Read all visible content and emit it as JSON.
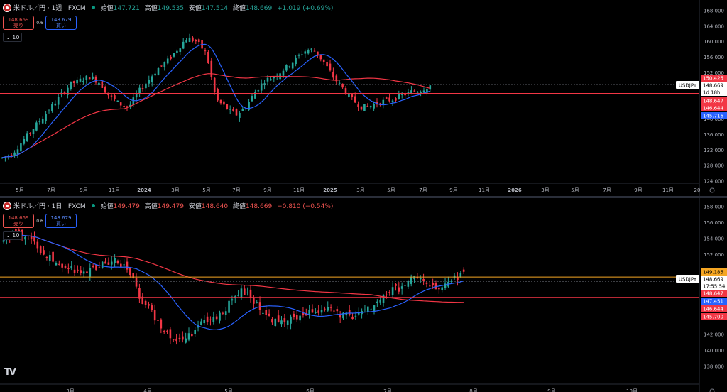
{
  "top": {
    "symbol": "米ドル／円 · 1週 · FXCM",
    "ohlc": {
      "open_label": "始値",
      "open": "147.721",
      "high_label": "高値",
      "high": "149.535",
      "low_label": "安値",
      "low": "147.514",
      "close_label": "終値",
      "close": "148.669",
      "change": "+1.019 (+0.69%)"
    },
    "sell_price": "148.669",
    "sell_label": "売り",
    "buy_price": "148.679",
    "buy_label": "買い",
    "spread": "0.6",
    "ma_toggle": "10",
    "price_ticks": [
      "168.000",
      "164.000",
      "160.000",
      "156.000",
      "152.000",
      "148.000",
      "144.000",
      "140.000",
      "136.000",
      "132.000",
      "128.000",
      "124.000"
    ],
    "time_ticks": [
      "5月",
      "7月",
      "9月",
      "11月",
      "2024",
      "3月",
      "5月",
      "7月",
      "9月",
      "11月",
      "2025",
      "3月",
      "5月",
      "7月",
      "9月",
      "11月",
      "2026",
      "3月",
      "5月",
      "7月",
      "9月",
      "11月",
      "20"
    ],
    "symbol_tag": "USDJPY",
    "badges": [
      {
        "text": "150.425",
        "bg": "#f23645",
        "fg": "#ffffff"
      },
      {
        "text": "148.669",
        "bg": "#ffffff",
        "fg": "#000000"
      },
      {
        "text": "1d 18h",
        "bg": "#ffffff",
        "fg": "#000000"
      },
      {
        "text": "148.647",
        "bg": "#f23645",
        "fg": "#ffffff"
      },
      {
        "text": "146.644",
        "bg": "#f23645",
        "fg": "#ffffff"
      },
      {
        "text": "145.716",
        "bg": "#2962ff",
        "fg": "#ffffff"
      }
    ]
  },
  "bottom": {
    "symbol": "米ドル／円 · 1日 · FXCM",
    "ohlc": {
      "open_label": "始値",
      "open": "149.479",
      "high_label": "高値",
      "high": "149.479",
      "low_label": "安値",
      "low": "148.640",
      "close_label": "終値",
      "close": "148.669",
      "change": "−0.810 (−0.54%)"
    },
    "sell_price": "148.669",
    "sell_label": "売り",
    "buy_price": "148.679",
    "buy_label": "買い",
    "spread": "0.6",
    "ma_toggle": "10",
    "price_ticks": [
      "158.000",
      "156.000",
      "154.000",
      "152.000",
      "150.000",
      "148.000",
      "146.000",
      "144.000",
      "142.000",
      "140.000",
      "138.000"
    ],
    "time_ticks": [
      "3月",
      "4月",
      "5月",
      "6月",
      "7月",
      "8月",
      "9月",
      "10月"
    ],
    "symbol_tag": "USDJPY",
    "badges": [
      {
        "text": "149.185",
        "bg": "#f5a623",
        "fg": "#000000"
      },
      {
        "text": "148.669",
        "bg": "#ffffff",
        "fg": "#000000"
      },
      {
        "text": "17:55:54",
        "bg": "#ffffff",
        "fg": "#000000"
      },
      {
        "text": "148.647",
        "bg": "#f23645",
        "fg": "#ffffff"
      },
      {
        "text": "147.451",
        "bg": "#2962ff",
        "fg": "#ffffff"
      },
      {
        "text": "146.644",
        "bg": "#f23645",
        "fg": "#ffffff"
      },
      {
        "text": "145.700",
        "bg": "#f23645",
        "fg": "#ffffff"
      }
    ]
  },
  "colors": {
    "up": "#26a69a",
    "down": "#f23645",
    "ma_fast": "#2962ff",
    "ma_slow": "#f23645",
    "level": "#f23645",
    "orange": "#f5a623"
  },
  "logo": "TV"
}
